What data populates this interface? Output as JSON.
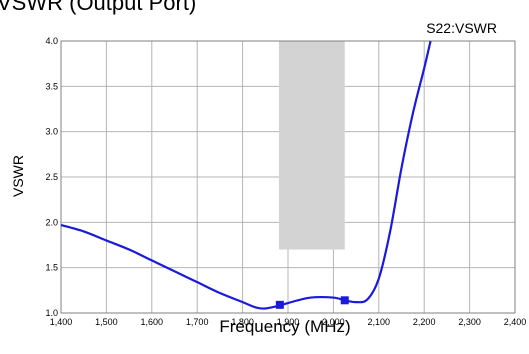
{
  "chart_data": {
    "type": "line",
    "title": "VSWR (Output Port)",
    "xlabel": "Frequency (MHz)",
    "ylabel": "VSWR",
    "xlim": [
      1400,
      2400
    ],
    "ylim": [
      1.0,
      4.0
    ],
    "x_ticks": [
      1400,
      1500,
      1600,
      1700,
      1800,
      1900,
      2000,
      2100,
      2200,
      2300,
      2400
    ],
    "x_tick_labels": [
      "1,400",
      "1,500",
      "1,600",
      "1,700",
      "1,800",
      "1,900",
      "2,000",
      "2,100",
      "2,200",
      "2,300",
      "2,400"
    ],
    "y_ticks": [
      1.0,
      1.5,
      2.0,
      2.5,
      3.0,
      3.5,
      4.0
    ],
    "y_tick_labels": [
      "1.0",
      "1.5",
      "2.0",
      "2.5",
      "3.0",
      "3.5",
      "4.0"
    ],
    "grid": true,
    "series": [
      {
        "name": "S22:VSWR",
        "color": "#1a1adc",
        "x": [
          1400,
          1450,
          1500,
          1550,
          1600,
          1650,
          1700,
          1750,
          1800,
          1830,
          1850,
          1880,
          1900,
          1950,
          2000,
          2025,
          2050,
          2075,
          2100,
          2125,
          2150,
          2175,
          2200,
          2214
        ],
        "y": [
          1.97,
          1.9,
          1.8,
          1.7,
          1.58,
          1.46,
          1.34,
          1.22,
          1.12,
          1.06,
          1.05,
          1.08,
          1.11,
          1.17,
          1.17,
          1.14,
          1.12,
          1.15,
          1.38,
          1.9,
          2.6,
          3.2,
          3.7,
          4.0
        ]
      }
    ],
    "markers": [
      {
        "x": 1882,
        "y": 1.09
      },
      {
        "x": 2025,
        "y": 1.14
      }
    ],
    "shaded_band": {
      "x_start": 1880,
      "x_end": 2025,
      "y_start": 1.7,
      "y_end": 4.0,
      "color": "#d3d3d3"
    }
  }
}
